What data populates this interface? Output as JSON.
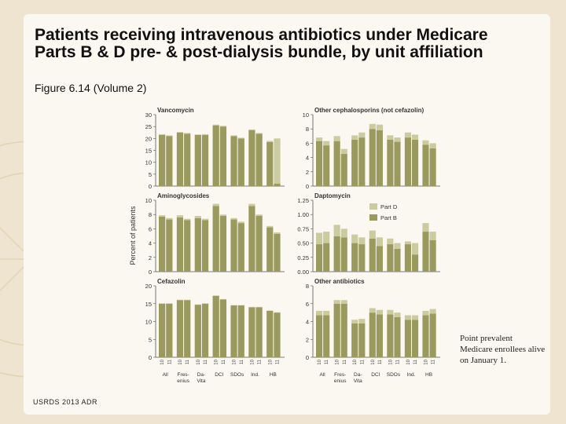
{
  "slide": {
    "title": "Patients receiving intravenous antibiotics under Medicare Parts B & D pre- & post-dialysis bundle, by unit affiliation",
    "subtitle": "Figure 6.14 (Volume 2)",
    "note": "Point prevalent Medicare enrollees alive on January 1.",
    "footer": "USRDS 2013 ADR"
  },
  "colors": {
    "part_b": "#9a9a5e",
    "part_d": "#cbcba0",
    "axis": "#555555",
    "slide_bg": "#fbf8f1",
    "page_bg": "#efe4cf"
  },
  "chart_data": {
    "type": "bar",
    "stacked": true,
    "ylabel": "Percent of patients",
    "categories": [
      "All",
      "Fres- enius",
      "Da- Vita",
      "DCI",
      "SDOs",
      "Ind.",
      "HB"
    ],
    "year_labels": [
      "10",
      "11"
    ],
    "legend": [
      "Part D",
      "Part B"
    ],
    "legend_position": "right of Daptomycin panel",
    "panels": [
      {
        "title": "Vancomycin",
        "ylim": [
          0,
          30
        ],
        "yticks": [
          "0",
          "5",
          "10",
          "15",
          "20",
          "25",
          "30"
        ],
        "series": [
          {
            "name": "Part B",
            "values": [
              21.5,
              21,
              22.5,
              22,
              21.5,
              21.5,
              25.5,
              25,
              21,
              20,
              23.5,
              22,
              18.5,
              1
            ]
          },
          {
            "name": "Part D",
            "values": [
              0.3,
              0.3,
              0.2,
              0.3,
              0.2,
              0.3,
              0.3,
              0.3,
              0.3,
              0.3,
              0.3,
              0.3,
              0.5,
              19
            ]
          }
        ]
      },
      {
        "title": "Other cephalosporins (not cefazolin)",
        "ylim": [
          0,
          10
        ],
        "yticks": [
          "0",
          "2",
          "4",
          "6",
          "8",
          "10"
        ],
        "series": [
          {
            "name": "Part B",
            "values": [
              6.3,
              5.7,
              6.3,
              4.5,
              6.5,
              6.8,
              8,
              7.8,
              6.5,
              6.2,
              6.8,
              6.5,
              5.8,
              5.3
            ]
          },
          {
            "name": "Part D",
            "values": [
              0.5,
              0.6,
              0.7,
              0.7,
              0.6,
              0.7,
              0.7,
              0.8,
              0.6,
              0.6,
              0.7,
              0.7,
              0.6,
              0.7
            ]
          }
        ]
      },
      {
        "title": "Aminoglycosides",
        "ylim": [
          0,
          10
        ],
        "yticks": [
          "0",
          "2",
          "4",
          "6",
          "8",
          "10"
        ],
        "series": [
          {
            "name": "Part B",
            "values": [
              7.7,
              7.3,
              7.6,
              7.2,
              7.5,
              7.2,
              9.2,
              7.8,
              7.3,
              6.8,
              9.2,
              7.8,
              6.2,
              5.3
            ]
          },
          {
            "name": "Part D",
            "values": [
              0.2,
              0.2,
              0.3,
              0.2,
              0.3,
              0.2,
              0.3,
              0.2,
              0.2,
              0.2,
              0.3,
              0.2,
              0.2,
              0.2
            ]
          }
        ]
      },
      {
        "title": "Daptomycin",
        "ylim": [
          0,
          1.25
        ],
        "yticks": [
          "0.00",
          "0.25",
          "0.50",
          "0.75",
          "1.00",
          "1.25"
        ],
        "series": [
          {
            "name": "Part B",
            "values": [
              0.48,
              0.5,
              0.62,
              0.6,
              0.5,
              0.48,
              0.58,
              0.45,
              0.48,
              0.4,
              0.48,
              0.3,
              0.7,
              0.55
            ]
          },
          {
            "name": "Part D",
            "values": [
              0.2,
              0.2,
              0.2,
              0.15,
              0.15,
              0.12,
              0.14,
              0.15,
              0.1,
              0.1,
              0.05,
              0.2,
              0.15,
              0.15
            ]
          }
        ]
      },
      {
        "title": "Cefazolin",
        "ylim": [
          0,
          20
        ],
        "yticks": [
          "0",
          "5",
          "10",
          "15",
          "20"
        ],
        "series": [
          {
            "name": "Part B",
            "values": [
              15,
              15,
              16,
              16,
              14.7,
              15,
              17.2,
              16.2,
              14.5,
              14.5,
              14,
              14,
              13,
              12.5
            ]
          },
          {
            "name": "Part D",
            "values": [
              0.1,
              0.1,
              0.1,
              0.1,
              0.1,
              0.1,
              0.1,
              0.1,
              0.1,
              0.1,
              0.1,
              0.1,
              0.1,
              0.1
            ]
          }
        ]
      },
      {
        "title": "Other antibiotics",
        "ylim": [
          0,
          8
        ],
        "yticks": [
          "0",
          "2",
          "4",
          "6",
          "8"
        ],
        "series": [
          {
            "name": "Part B",
            "values": [
              4.7,
              4.7,
              6,
              6,
              3.8,
              3.8,
              5,
              4.8,
              4.8,
              4.5,
              4.2,
              4.2,
              4.7,
              4.9
            ]
          },
          {
            "name": "Part D",
            "values": [
              0.5,
              0.5,
              0.4,
              0.4,
              0.4,
              0.5,
              0.5,
              0.5,
              0.5,
              0.5,
              0.5,
              0.5,
              0.5,
              0.5
            ]
          }
        ]
      }
    ]
  }
}
